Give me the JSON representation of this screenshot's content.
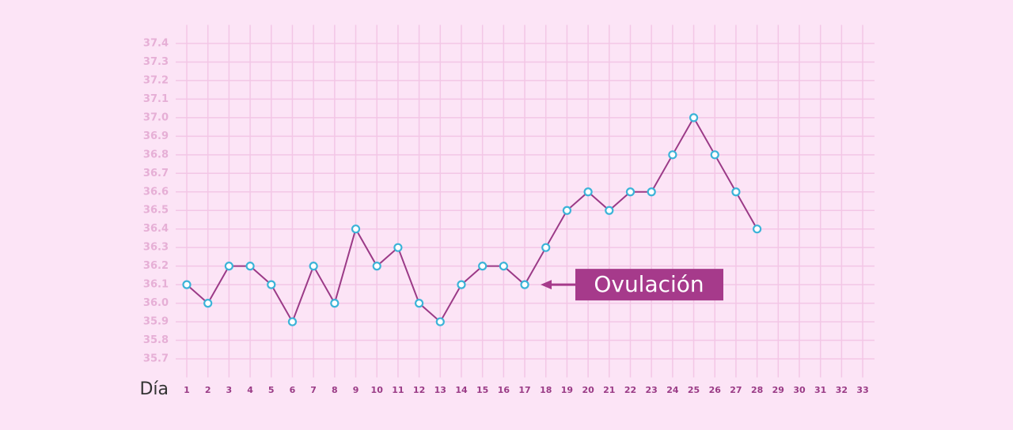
{
  "chart_data": {
    "type": "line",
    "x_label": "Día",
    "categories": [
      1,
      2,
      3,
      4,
      5,
      6,
      7,
      8,
      9,
      10,
      11,
      12,
      13,
      14,
      15,
      16,
      17,
      18,
      19,
      20,
      21,
      22,
      23,
      24,
      25,
      26,
      27,
      28,
      29,
      30,
      31,
      32,
      33
    ],
    "series": [
      {
        "name": null,
        "color": "#9b3a87",
        "marker_color": "#3bb4d8",
        "values": [
          36.1,
          36.0,
          36.2,
          36.2,
          36.1,
          35.9,
          36.2,
          36.0,
          36.4,
          36.2,
          36.3,
          36.0,
          35.9,
          36.1,
          36.2,
          36.2,
          36.1,
          36.3,
          36.5,
          36.6,
          36.5,
          36.6,
          36.6,
          36.8,
          37.0,
          36.8,
          36.6,
          36.4,
          null,
          null,
          null,
          null,
          null
        ]
      }
    ],
    "ylim": [
      35.6,
      37.5
    ],
    "yticks": [
      35.7,
      35.8,
      35.9,
      {
        "value": 36,
        "label": "36.0"
      },
      36.1,
      36.2,
      36.3,
      36.4,
      36.5,
      36.6,
      36.7,
      36.8,
      36.9,
      {
        "value": 37,
        "label": "37.0"
      },
      37.1,
      37.2,
      37.3,
      37.4
    ],
    "grid": true,
    "annotation": {
      "text": "Ovulación",
      "category_index": 16,
      "color": "#a63a8b"
    }
  }
}
